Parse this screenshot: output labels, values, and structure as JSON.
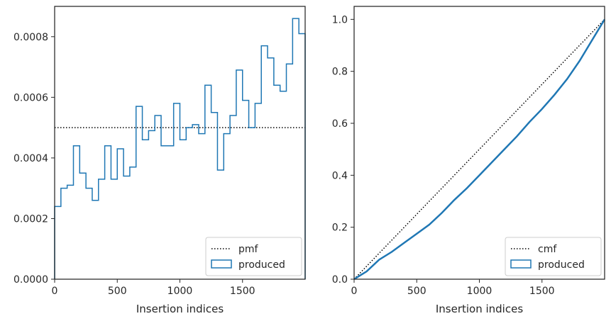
{
  "chart_data": [
    {
      "type": "histogram",
      "xlabel": "Insertion indices",
      "ylabel": "",
      "xlim": [
        0,
        2000
      ],
      "ylim": [
        0,
        0.0009
      ],
      "xticks": [
        0,
        500,
        1000,
        1500
      ],
      "xtick_labels": [
        "0",
        "500",
        "1000",
        "1500"
      ],
      "yticks": [
        0,
        0.0002,
        0.0004,
        0.0006,
        0.0008
      ],
      "ytick_labels": [
        "0.0000",
        "0.0002",
        "0.0004",
        "0.0006",
        "0.0008"
      ],
      "legend_position": "lower-right",
      "legend": [
        "pmf",
        "produced"
      ],
      "reference_line": {
        "name": "pmf",
        "style": "dotted",
        "color": "#000000",
        "y": 0.0005
      },
      "produced": {
        "name": "produced",
        "color": "#1f77b4",
        "bin_edges": [
          0,
          50,
          100,
          150,
          200,
          250,
          300,
          350,
          400,
          450,
          500,
          550,
          600,
          650,
          700,
          750,
          800,
          850,
          900,
          950,
          1000,
          1050,
          1100,
          1150,
          1200,
          1250,
          1300,
          1350,
          1400,
          1450,
          1500,
          1550,
          1600,
          1650,
          1700,
          1750,
          1800,
          1850,
          1900,
          1950,
          2000
        ],
        "values": [
          0.00024,
          0.0003,
          0.00031,
          0.00044,
          0.00035,
          0.0003,
          0.00026,
          0.00033,
          0.00044,
          0.00033,
          0.00043,
          0.00034,
          0.00037,
          0.00057,
          0.00046,
          0.00049,
          0.00054,
          0.00044,
          0.00044,
          0.00058,
          0.00046,
          0.0005,
          0.00051,
          0.00048,
          0.00064,
          0.00055,
          0.00036,
          0.00048,
          0.00054,
          0.00069,
          0.00059,
          0.0005,
          0.00058,
          0.00077,
          0.00073,
          0.00064,
          0.00062,
          0.00071,
          0.00086,
          0.00081
        ]
      }
    },
    {
      "type": "line",
      "xlabel": "Insertion indices",
      "ylabel": "",
      "xlim": [
        0,
        2000
      ],
      "ylim": [
        0,
        1.05
      ],
      "xticks": [
        0,
        500,
        1000,
        1500
      ],
      "xtick_labels": [
        "0",
        "500",
        "1000",
        "1500"
      ],
      "yticks": [
        0,
        0.2,
        0.4,
        0.6,
        0.8,
        1.0
      ],
      "ytick_labels": [
        "0.0",
        "0.2",
        "0.4",
        "0.6",
        "0.8",
        "1.0"
      ],
      "legend_position": "lower-right",
      "legend": [
        "cmf",
        "produced"
      ],
      "reference_line": {
        "name": "cmf",
        "style": "dotted",
        "color": "#000000",
        "x": [
          0,
          2000
        ],
        "y": [
          0,
          1.0
        ]
      },
      "produced": {
        "name": "produced",
        "color": "#1f77b4",
        "x": [
          0,
          100,
          200,
          300,
          400,
          500,
          600,
          700,
          800,
          900,
          1000,
          1100,
          1200,
          1300,
          1400,
          1500,
          1600,
          1700,
          1800,
          1900,
          2000
        ],
        "y": [
          0,
          0.03,
          0.075,
          0.105,
          0.14,
          0.175,
          0.21,
          0.255,
          0.305,
          0.35,
          0.4,
          0.45,
          0.5,
          0.55,
          0.605,
          0.655,
          0.71,
          0.77,
          0.84,
          0.92,
          1.0
        ]
      }
    }
  ]
}
